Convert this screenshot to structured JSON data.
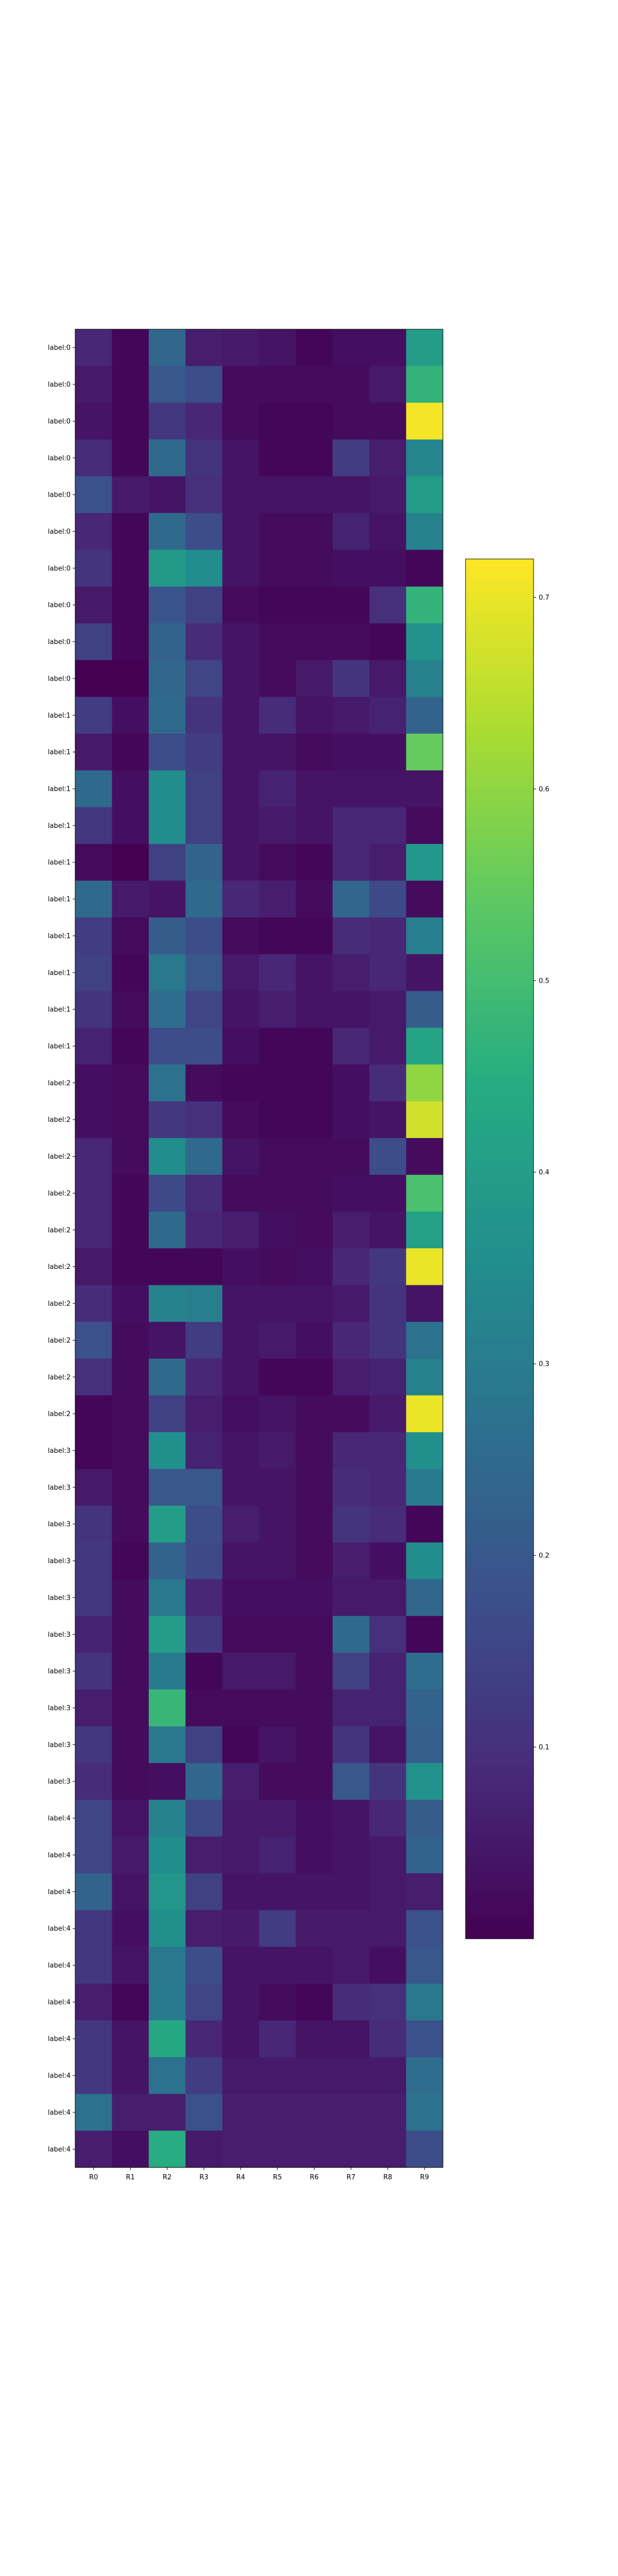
{
  "chart_data": {
    "type": "heatmap",
    "title": "",
    "xlabel": "",
    "ylabel": "",
    "colormap": "viridis",
    "x_labels": [
      "R0",
      "R1",
      "R2",
      "R3",
      "R4",
      "R5",
      "R6",
      "R7",
      "R8",
      "R9"
    ],
    "y_labels": [
      "label:0",
      "label:0",
      "label:0",
      "label:0",
      "label:0",
      "label:0",
      "label:0",
      "label:0",
      "label:0",
      "label:0",
      "label:1",
      "label:1",
      "label:1",
      "label:1",
      "label:1",
      "label:1",
      "label:1",
      "label:1",
      "label:1",
      "label:1",
      "label:2",
      "label:2",
      "label:2",
      "label:2",
      "label:2",
      "label:2",
      "label:2",
      "label:2",
      "label:2",
      "label:2",
      "label:3",
      "label:3",
      "label:3",
      "label:3",
      "label:3",
      "label:3",
      "label:3",
      "label:3",
      "label:3",
      "label:3",
      "label:4",
      "label:4",
      "label:4",
      "label:4",
      "label:4",
      "label:4",
      "label:4",
      "label:4",
      "label:4",
      "label:4"
    ],
    "values": [
      [
        0.08,
        0.01,
        0.24,
        0.06,
        0.05,
        0.04,
        0.01,
        0.03,
        0.03,
        0.4
      ],
      [
        0.05,
        0.01,
        0.2,
        0.17,
        0.02,
        0.02,
        0.02,
        0.02,
        0.05,
        0.47
      ],
      [
        0.04,
        0.01,
        0.12,
        0.08,
        0.02,
        0.01,
        0.01,
        0.02,
        0.02,
        0.71
      ],
      [
        0.09,
        0.01,
        0.25,
        0.11,
        0.04,
        0.01,
        0.01,
        0.13,
        0.06,
        0.33
      ],
      [
        0.18,
        0.05,
        0.04,
        0.1,
        0.04,
        0.04,
        0.04,
        0.04,
        0.05,
        0.4
      ],
      [
        0.08,
        0.01,
        0.25,
        0.17,
        0.04,
        0.02,
        0.02,
        0.07,
        0.04,
        0.32
      ],
      [
        0.11,
        0.01,
        0.39,
        0.35,
        0.04,
        0.02,
        0.02,
        0.03,
        0.03,
        0.01
      ],
      [
        0.05,
        0.01,
        0.19,
        0.14,
        0.02,
        0.01,
        0.01,
        0.01,
        0.1,
        0.47
      ],
      [
        0.14,
        0.01,
        0.23,
        0.09,
        0.04,
        0.02,
        0.02,
        0.02,
        0.01,
        0.37
      ],
      [
        0.0,
        0.0,
        0.24,
        0.15,
        0.04,
        0.02,
        0.05,
        0.11,
        0.05,
        0.32
      ],
      [
        0.13,
        0.03,
        0.25,
        0.11,
        0.04,
        0.09,
        0.04,
        0.05,
        0.07,
        0.23
      ],
      [
        0.05,
        0.01,
        0.17,
        0.13,
        0.04,
        0.04,
        0.02,
        0.03,
        0.03,
        0.55
      ],
      [
        0.25,
        0.03,
        0.35,
        0.14,
        0.04,
        0.07,
        0.04,
        0.04,
        0.04,
        0.04
      ],
      [
        0.12,
        0.03,
        0.35,
        0.14,
        0.04,
        0.05,
        0.04,
        0.08,
        0.08,
        0.02
      ],
      [
        0.02,
        0.0,
        0.14,
        0.23,
        0.04,
        0.02,
        0.01,
        0.08,
        0.06,
        0.38
      ],
      [
        0.25,
        0.05,
        0.04,
        0.25,
        0.08,
        0.06,
        0.02,
        0.24,
        0.16,
        0.02
      ],
      [
        0.13,
        0.02,
        0.21,
        0.17,
        0.02,
        0.01,
        0.01,
        0.09,
        0.08,
        0.31
      ],
      [
        0.14,
        0.01,
        0.29,
        0.2,
        0.05,
        0.08,
        0.04,
        0.06,
        0.08,
        0.04
      ],
      [
        0.11,
        0.02,
        0.26,
        0.15,
        0.04,
        0.06,
        0.04,
        0.04,
        0.05,
        0.21
      ],
      [
        0.07,
        0.01,
        0.17,
        0.17,
        0.03,
        0.01,
        0.01,
        0.08,
        0.05,
        0.42
      ],
      [
        0.03,
        0.02,
        0.27,
        0.02,
        0.01,
        0.01,
        0.01,
        0.03,
        0.09,
        0.6
      ],
      [
        0.03,
        0.02,
        0.12,
        0.1,
        0.02,
        0.01,
        0.01,
        0.03,
        0.04,
        0.67
      ],
      [
        0.08,
        0.02,
        0.35,
        0.25,
        0.04,
        0.02,
        0.02,
        0.02,
        0.17,
        0.02
      ],
      [
        0.08,
        0.01,
        0.16,
        0.09,
        0.02,
        0.02,
        0.02,
        0.03,
        0.03,
        0.51
      ],
      [
        0.08,
        0.01,
        0.25,
        0.08,
        0.06,
        0.03,
        0.02,
        0.06,
        0.04,
        0.41
      ],
      [
        0.05,
        0.01,
        0.01,
        0.01,
        0.03,
        0.02,
        0.03,
        0.08,
        0.12,
        0.7
      ],
      [
        0.09,
        0.03,
        0.32,
        0.31,
        0.04,
        0.04,
        0.04,
        0.05,
        0.11,
        0.04
      ],
      [
        0.18,
        0.02,
        0.04,
        0.13,
        0.04,
        0.05,
        0.03,
        0.08,
        0.11,
        0.27
      ],
      [
        0.1,
        0.02,
        0.25,
        0.08,
        0.04,
        0.01,
        0.01,
        0.06,
        0.07,
        0.32
      ],
      [
        0.01,
        0.02,
        0.14,
        0.06,
        0.03,
        0.04,
        0.02,
        0.02,
        0.05,
        0.7
      ],
      [
        0.01,
        0.02,
        0.36,
        0.07,
        0.04,
        0.05,
        0.02,
        0.08,
        0.08,
        0.36
      ],
      [
        0.05,
        0.02,
        0.2,
        0.2,
        0.04,
        0.04,
        0.02,
        0.09,
        0.08,
        0.3
      ],
      [
        0.11,
        0.02,
        0.4,
        0.17,
        0.06,
        0.04,
        0.02,
        0.11,
        0.09,
        0.01
      ],
      [
        0.12,
        0.01,
        0.23,
        0.16,
        0.04,
        0.04,
        0.02,
        0.06,
        0.03,
        0.35
      ],
      [
        0.12,
        0.02,
        0.29,
        0.08,
        0.03,
        0.03,
        0.03,
        0.05,
        0.05,
        0.24
      ],
      [
        0.07,
        0.02,
        0.4,
        0.12,
        0.02,
        0.02,
        0.02,
        0.25,
        0.1,
        0.01
      ],
      [
        0.11,
        0.02,
        0.3,
        0.01,
        0.05,
        0.05,
        0.02,
        0.14,
        0.07,
        0.26
      ],
      [
        0.06,
        0.02,
        0.48,
        0.02,
        0.02,
        0.02,
        0.02,
        0.07,
        0.07,
        0.23
      ],
      [
        0.12,
        0.02,
        0.29,
        0.14,
        0.01,
        0.04,
        0.02,
        0.11,
        0.04,
        0.22
      ],
      [
        0.09,
        0.02,
        0.03,
        0.24,
        0.06,
        0.02,
        0.02,
        0.2,
        0.11,
        0.37
      ],
      [
        0.15,
        0.04,
        0.32,
        0.16,
        0.05,
        0.05,
        0.03,
        0.04,
        0.08,
        0.21
      ],
      [
        0.15,
        0.05,
        0.35,
        0.06,
        0.05,
        0.07,
        0.03,
        0.04,
        0.05,
        0.23
      ],
      [
        0.23,
        0.04,
        0.38,
        0.14,
        0.04,
        0.04,
        0.04,
        0.04,
        0.05,
        0.06
      ],
      [
        0.12,
        0.03,
        0.36,
        0.06,
        0.05,
        0.13,
        0.05,
        0.05,
        0.05,
        0.18
      ],
      [
        0.12,
        0.04,
        0.29,
        0.17,
        0.04,
        0.04,
        0.04,
        0.05,
        0.03,
        0.2
      ],
      [
        0.06,
        0.01,
        0.3,
        0.15,
        0.04,
        0.02,
        0.01,
        0.09,
        0.1,
        0.29
      ],
      [
        0.12,
        0.04,
        0.43,
        0.08,
        0.04,
        0.08,
        0.04,
        0.04,
        0.09,
        0.18
      ],
      [
        0.12,
        0.04,
        0.27,
        0.13,
        0.05,
        0.05,
        0.05,
        0.05,
        0.05,
        0.26
      ],
      [
        0.27,
        0.06,
        0.06,
        0.18,
        0.06,
        0.06,
        0.06,
        0.06,
        0.06,
        0.27
      ],
      [
        0.06,
        0.03,
        0.45,
        0.05,
        0.06,
        0.06,
        0.06,
        0.06,
        0.06,
        0.17
      ]
    ],
    "colorbar": {
      "vmin": 0.0,
      "vmax": 0.72,
      "ticks": [
        0.1,
        0.2,
        0.3,
        0.4,
        0.5,
        0.6,
        0.7
      ],
      "tick_labels": [
        "0.1",
        "0.2",
        "0.3",
        "0.4",
        "0.5",
        "0.6",
        "0.7"
      ]
    },
    "grid": false,
    "legend": "none"
  }
}
